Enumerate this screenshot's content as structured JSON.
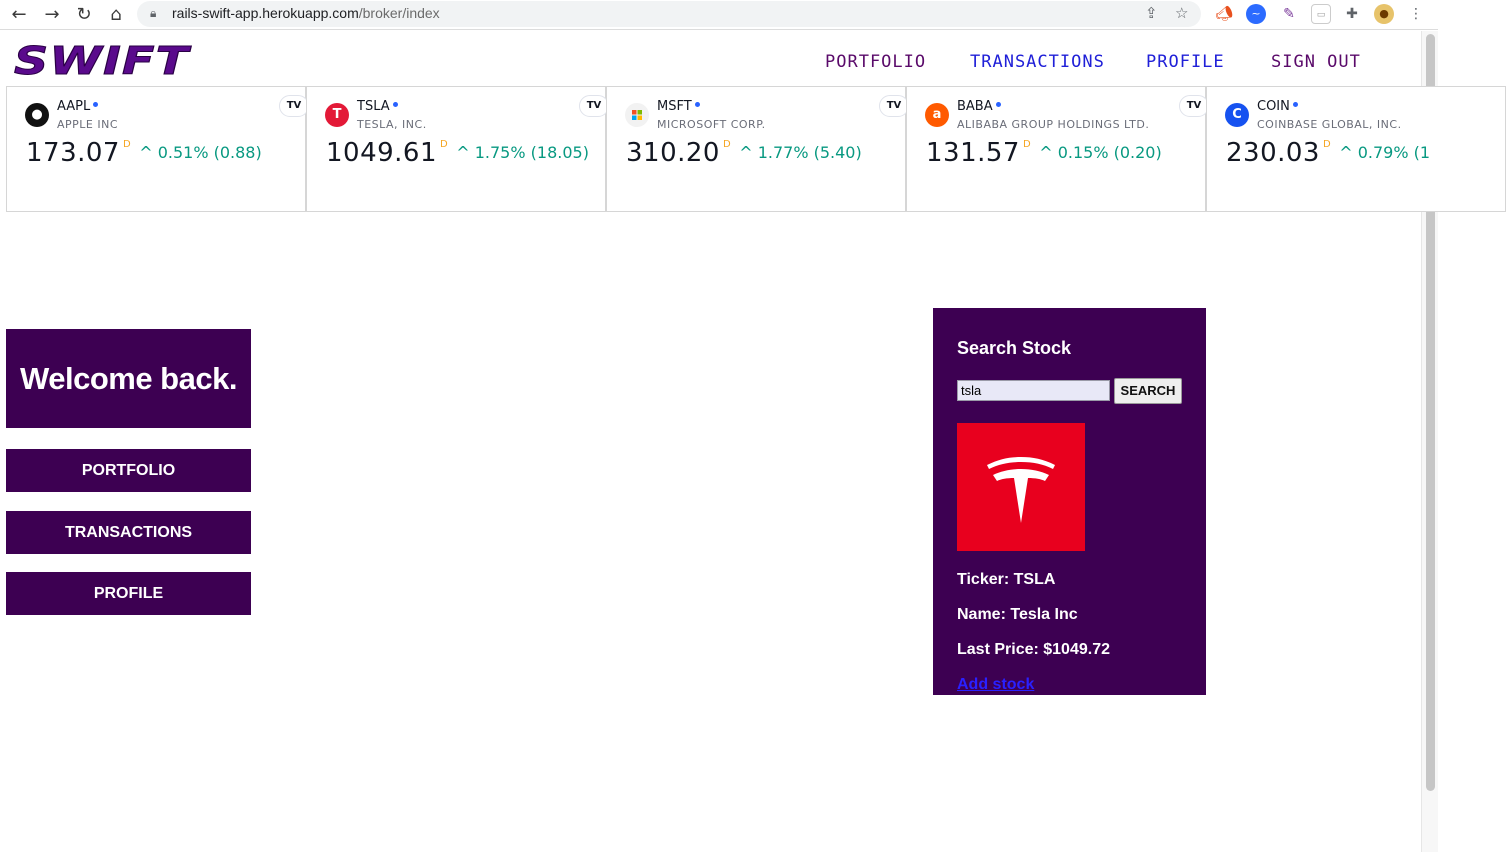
{
  "browser": {
    "url_host": "rails-swift-app.herokuapp.com",
    "url_path": "/broker/index"
  },
  "site": {
    "logo_text": "SWIFT",
    "nav": [
      {
        "label": "PORTFOLIO"
      },
      {
        "label": "TRANSACTIONS"
      },
      {
        "label": "PROFILE"
      },
      {
        "label": "SIGN OUT"
      }
    ]
  },
  "ticker": [
    {
      "symbol": "AAPL",
      "name": "APPLE INC",
      "price": "173.07",
      "flag": "D",
      "change": "0.51% (0.88)",
      "logo_color": "#111111",
      "logo_glyph": ""
    },
    {
      "symbol": "TSLA",
      "name": "TESLA, INC.",
      "price": "1049.61",
      "flag": "D",
      "change": "1.75% (18.05)",
      "logo_color": "#e31937",
      "logo_glyph": "T"
    },
    {
      "symbol": "MSFT",
      "name": "MICROSOFT CORP.",
      "price": "310.20",
      "flag": "D",
      "change": "1.77% (5.40)",
      "logo_color": "#f2f2f2",
      "logo_glyph": ""
    },
    {
      "symbol": "BABA",
      "name": "ALIBABA GROUP HOLDINGS LTD.",
      "price": "131.57",
      "flag": "D",
      "change": "0.15% (0.20)",
      "logo_color": "#ff5a00",
      "logo_glyph": "a"
    },
    {
      "symbol": "COIN",
      "name": "COINBASE GLOBAL, INC.",
      "price": "230.03",
      "flag": "D",
      "change": "0.79% (1",
      "logo_color": "#1652f0",
      "logo_glyph": "C"
    }
  ],
  "sidebar": {
    "welcome": "Welcome back.",
    "buttons": [
      {
        "label": "PORTFOLIO"
      },
      {
        "label": "TRANSACTIONS"
      },
      {
        "label": "PROFILE"
      }
    ]
  },
  "search": {
    "title": "Search Stock",
    "query": "tsla",
    "button": "SEARCH",
    "ticker_line": "Ticker: TSLA",
    "name_line": "Name: Tesla Inc",
    "price_line": "Last Price: $1049.72",
    "add_link": "Add stock"
  },
  "colors": {
    "brand_purple": "#3d0052",
    "up_green": "#089981",
    "tesla_red": "#e8001e"
  }
}
